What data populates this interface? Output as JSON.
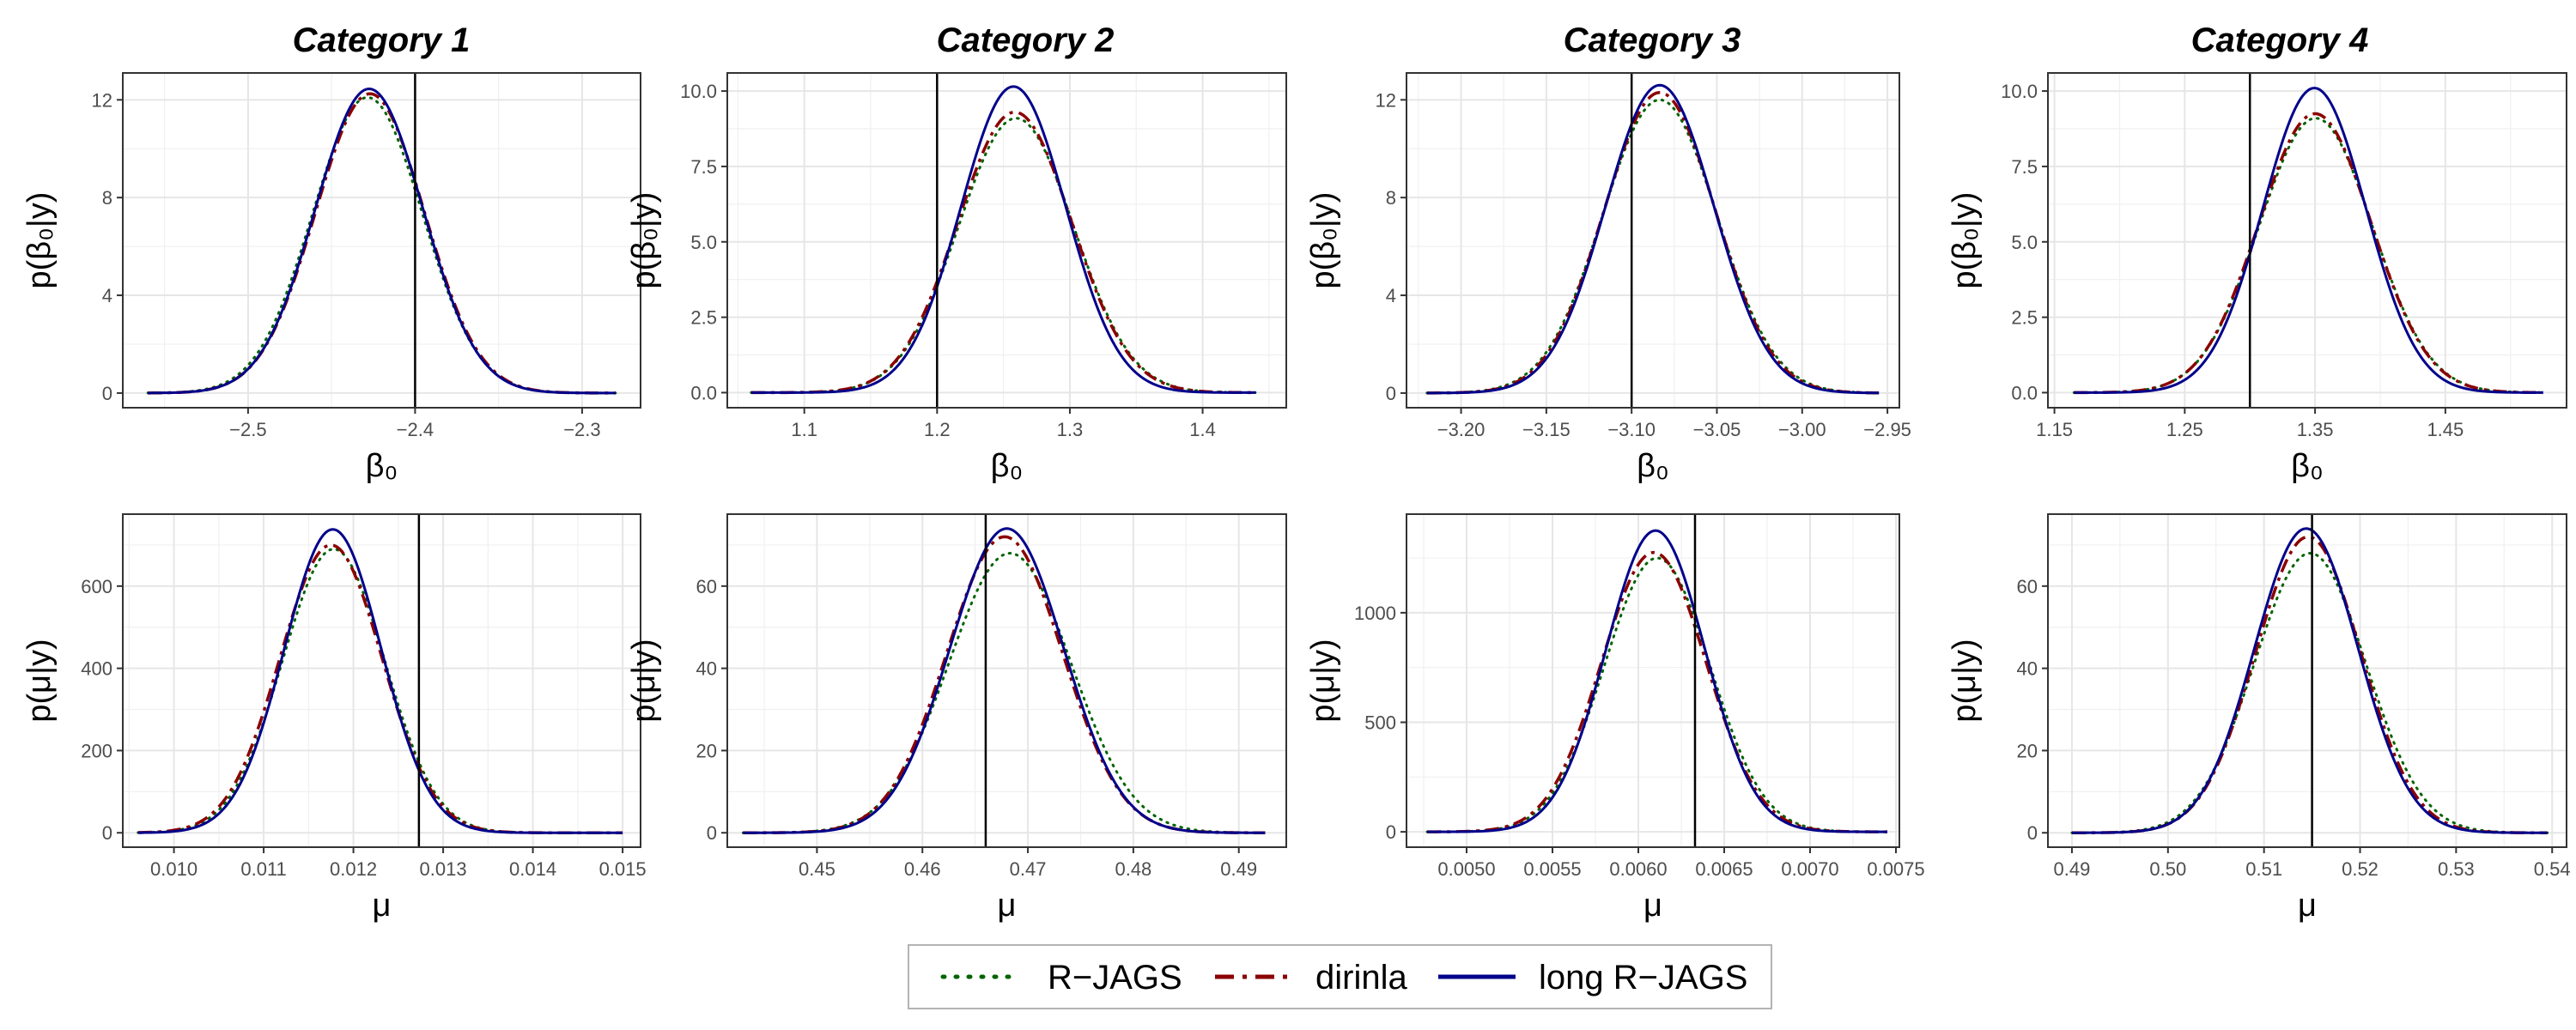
{
  "figure": {
    "category_titles": [
      "Category 1",
      "Category 2",
      "Category 3",
      "Category 4"
    ]
  },
  "legend": {
    "items": [
      {
        "label": "R−JAGS",
        "color": "#006400",
        "style": "dotted"
      },
      {
        "label": "dirinla",
        "color": "#8b0000",
        "style": "dashed"
      },
      {
        "label": "long R−JAGS",
        "color": "#00008b",
        "style": "solid"
      }
    ]
  },
  "chart_data": [
    {
      "type": "line",
      "category": "Category 1",
      "parameter": "beta0",
      "xlabel": "β₀",
      "ylabel": "p(β₀|y)",
      "xlim": [
        -2.575,
        -2.265
      ],
      "ylim": [
        -0.6,
        13.1
      ],
      "xticks": [
        -2.5,
        -2.4,
        -2.3
      ],
      "xtick_labels": [
        "−2.5",
        "−2.4",
        "−2.3"
      ],
      "yticks": [
        0,
        4,
        8,
        12
      ],
      "ytick_labels": [
        "0",
        "4",
        "8",
        "12"
      ],
      "x_range": [
        -2.56,
        -2.28
      ],
      "vline": -2.4,
      "grid": true,
      "series": [
        {
          "name": "R−JAGS",
          "mean": -2.4285,
          "sd": 0.0329,
          "peak": 12.1
        },
        {
          "name": "dirinla",
          "mean": -2.427,
          "sd": 0.0325,
          "peak": 12.25
        },
        {
          "name": "long R−JAGS",
          "mean": -2.4275,
          "sd": 0.0322,
          "peak": 12.45
        }
      ]
    },
    {
      "type": "line",
      "category": "Category 2",
      "parameter": "beta0",
      "xlabel": "β₀",
      "ylabel": "p(β₀|y)",
      "xlim": [
        1.042,
        1.463
      ],
      "ylim": [
        -0.5,
        10.6
      ],
      "xticks": [
        1.1,
        1.2,
        1.3,
        1.4
      ],
      "xtick_labels": [
        "1.1",
        "1.2",
        "1.3",
        "1.4"
      ],
      "yticks": [
        0,
        2.5,
        5,
        7.5,
        10
      ],
      "ytick_labels": [
        "0.0",
        "2.5",
        "5.0",
        "7.5",
        "10.0"
      ],
      "x_range": [
        1.06,
        1.44
      ],
      "vline": 1.2,
      "grid": true,
      "series": [
        {
          "name": "R−JAGS",
          "mean": 1.2595,
          "sd": 0.0433,
          "peak": 9.1
        },
        {
          "name": "dirinla",
          "mean": 1.2585,
          "sd": 0.043,
          "peak": 9.3
        },
        {
          "name": "long R−JAGS",
          "mean": 1.2575,
          "sd": 0.0395,
          "peak": 10.15
        }
      ]
    },
    {
      "type": "line",
      "category": "Category 3",
      "parameter": "beta0",
      "xlabel": "β₀",
      "ylabel": "p(β₀|y)",
      "xlim": [
        -3.232,
        -2.943
      ],
      "ylim": [
        -0.6,
        13.1
      ],
      "xticks": [
        -3.2,
        -3.15,
        -3.1,
        -3.05,
        -3.0,
        -2.95
      ],
      "xtick_labels": [
        "−3.20",
        "−3.15",
        "−3.10",
        "−3.05",
        "−3.00",
        "−2.95"
      ],
      "yticks": [
        0,
        4,
        8,
        12
      ],
      "ytick_labels": [
        "0",
        "4",
        "8",
        "12"
      ],
      "x_range": [
        -3.22,
        -2.955
      ],
      "vline": -3.1,
      "grid": true,
      "series": [
        {
          "name": "R−JAGS",
          "mean": -3.0835,
          "sd": 0.0335,
          "peak": 12.0
        },
        {
          "name": "dirinla",
          "mean": -3.0835,
          "sd": 0.0327,
          "peak": 12.3
        },
        {
          "name": "long R−JAGS",
          "mean": -3.0835,
          "sd": 0.0318,
          "peak": 12.6
        }
      ]
    },
    {
      "type": "line",
      "category": "Category 4",
      "parameter": "beta0",
      "xlabel": "β₀",
      "ylabel": "p(β₀|y)",
      "xlim": [
        1.145,
        1.543
      ],
      "ylim": [
        -0.5,
        10.6
      ],
      "xticks": [
        1.15,
        1.25,
        1.35,
        1.45
      ],
      "xtick_labels": [
        "1.15",
        "1.25",
        "1.35",
        "1.45"
      ],
      "yticks": [
        0,
        2.5,
        5,
        7.5,
        10
      ],
      "ytick_labels": [
        "0.0",
        "2.5",
        "5.0",
        "7.5",
        "10.0"
      ],
      "x_range": [
        1.165,
        1.525
      ],
      "vline": 1.3,
      "grid": true,
      "series": [
        {
          "name": "R−JAGS",
          "mean": 1.3505,
          "sd": 0.0435,
          "peak": 9.1
        },
        {
          "name": "dirinla",
          "mean": 1.35,
          "sd": 0.0432,
          "peak": 9.25
        },
        {
          "name": "long R−JAGS",
          "mean": 1.3495,
          "sd": 0.0395,
          "peak": 10.1
        }
      ]
    },
    {
      "type": "line",
      "category": "Category 1",
      "parameter": "mu",
      "xlabel": "μ",
      "ylabel": "p(μ|y)",
      "xlim": [
        0.00943,
        0.0152
      ],
      "ylim": [
        -35,
        775
      ],
      "xticks": [
        0.01,
        0.011,
        0.012,
        0.013,
        0.014,
        0.015
      ],
      "xtick_labels": [
        "0.010",
        "0.011",
        "0.012",
        "0.013",
        "0.014",
        "0.015"
      ],
      "yticks": [
        0,
        200,
        400,
        600
      ],
      "ytick_labels": [
        "0",
        "200",
        "400",
        "600"
      ],
      "x_range": [
        0.0096,
        0.015
      ],
      "vline": 0.01273,
      "grid": true,
      "series": [
        {
          "name": "R−JAGS",
          "mean": 0.01178,
          "sd": 0.00057,
          "peak": 690
        },
        {
          "name": "dirinla",
          "mean": 0.01175,
          "sd": 0.00057,
          "peak": 700
        },
        {
          "name": "long R−JAGS",
          "mean": 0.01177,
          "sd": 0.00054,
          "peak": 738
        }
      ]
    },
    {
      "type": "line",
      "category": "Category 2",
      "parameter": "mu",
      "xlabel": "μ",
      "ylabel": "p(μ|y)",
      "xlim": [
        0.4415,
        0.4945
      ],
      "ylim": [
        -3.5,
        77.5
      ],
      "xticks": [
        0.45,
        0.46,
        0.47,
        0.48,
        0.49
      ],
      "xtick_labels": [
        "0.45",
        "0.46",
        "0.47",
        "0.48",
        "0.49"
      ],
      "yticks": [
        0,
        20,
        40,
        60
      ],
      "ytick_labels": [
        "0",
        "20",
        "40",
        "60"
      ],
      "x_range": [
        0.443,
        0.4925
      ],
      "vline": 0.466,
      "grid": true,
      "series": [
        {
          "name": "R−JAGS",
          "mean": 0.4683,
          "sd": 0.0058,
          "peak": 68
        },
        {
          "name": "dirinla",
          "mean": 0.4678,
          "sd": 0.0055,
          "peak": 72
        },
        {
          "name": "long R−JAGS",
          "mean": 0.468,
          "sd": 0.0054,
          "peak": 74
        }
      ]
    },
    {
      "type": "line",
      "category": "Category 3",
      "parameter": "mu",
      "xlabel": "μ",
      "ylabel": "p(μ|y)",
      "xlim": [
        0.00465,
        0.00752
      ],
      "ylim": [
        -70,
        1450
      ],
      "xticks": [
        0.005,
        0.0055,
        0.006,
        0.0065,
        0.007,
        0.0075
      ],
      "xtick_labels": [
        "0.0050",
        "0.0055",
        "0.0060",
        "0.0065",
        "0.0070",
        "0.0075"
      ],
      "yticks": [
        0,
        500,
        1000
      ],
      "ytick_labels": [
        "0",
        "500",
        "1000"
      ],
      "x_range": [
        0.00477,
        0.00745
      ],
      "vline": 0.00633,
      "grid": true,
      "series": [
        {
          "name": "R−JAGS",
          "mean": 0.00611,
          "sd": 0.000308,
          "peak": 1250
        },
        {
          "name": "dirinla",
          "mean": 0.00609,
          "sd": 0.000305,
          "peak": 1275
        },
        {
          "name": "long R−JAGS",
          "mean": 0.0061,
          "sd": 0.000288,
          "peak": 1375
        }
      ]
    },
    {
      "type": "line",
      "category": "Category 4",
      "parameter": "mu",
      "xlabel": "μ",
      "ylabel": "p(μ|y)",
      "xlim": [
        0.4875,
        0.5415
      ],
      "ylim": [
        -3.5,
        77.5
      ],
      "xticks": [
        0.49,
        0.5,
        0.51,
        0.52,
        0.53,
        0.54
      ],
      "xtick_labels": [
        "0.49",
        "0.50",
        "0.51",
        "0.52",
        "0.53",
        "0.54"
      ],
      "yticks": [
        0,
        20,
        40,
        60
      ],
      "ytick_labels": [
        "0",
        "20",
        "40",
        "60"
      ],
      "x_range": [
        0.49,
        0.5395
      ],
      "vline": 0.515,
      "grid": true,
      "series": [
        {
          "name": "R−JAGS",
          "mean": 0.5148,
          "sd": 0.0058,
          "peak": 68
        },
        {
          "name": "dirinla",
          "mean": 0.5146,
          "sd": 0.0055,
          "peak": 72
        },
        {
          "name": "long R−JAGS",
          "mean": 0.5144,
          "sd": 0.0054,
          "peak": 74
        }
      ]
    }
  ]
}
